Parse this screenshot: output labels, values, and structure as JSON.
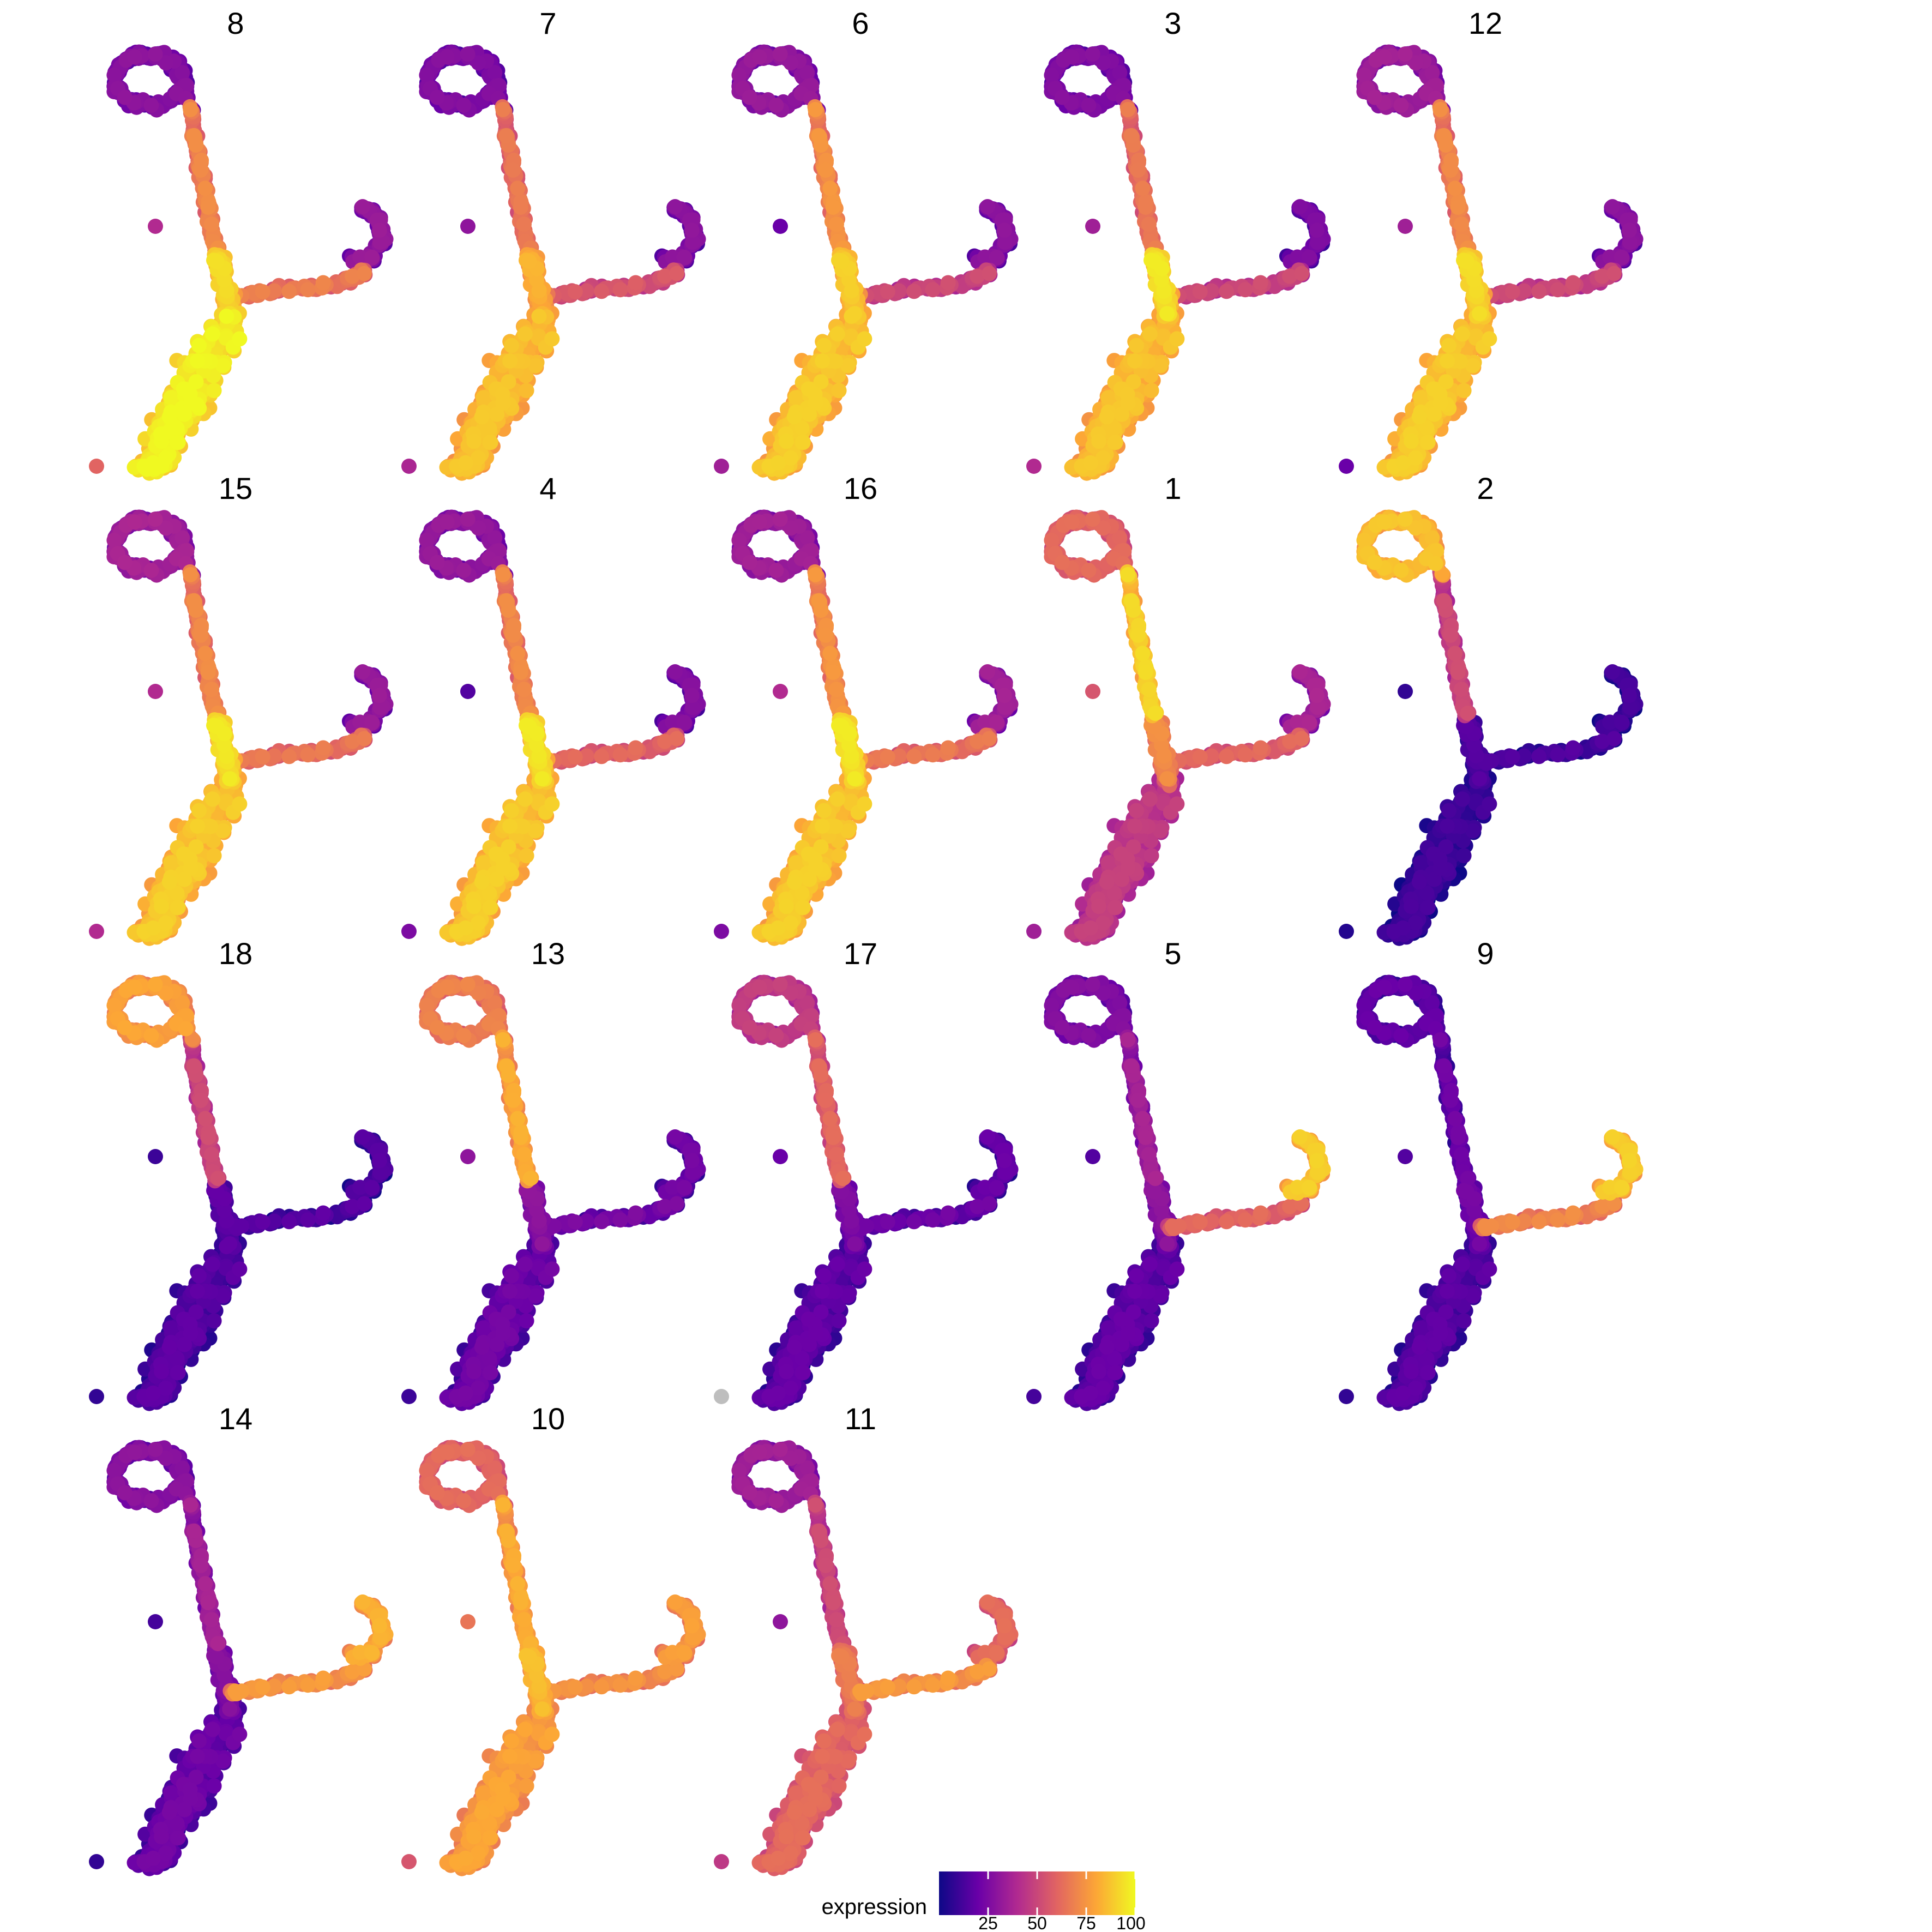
{
  "chart_data": {
    "type": "scatter",
    "subtype": "faceted-embedding-feature-plot",
    "facet_order": [
      "8",
      "7",
      "6",
      "3",
      "12",
      "15",
      "4",
      "16",
      "1",
      "2",
      "18",
      "13",
      "17",
      "5",
      "9",
      "14",
      "10",
      "11"
    ],
    "facet_layout": {
      "columns": 5,
      "rows": 4
    },
    "grid": false,
    "axes_shown": false,
    "legend": {
      "title": "expression",
      "position": "bottom-center",
      "range": [
        0,
        100
      ],
      "ticks": [
        25,
        50,
        75,
        100
      ],
      "tick_labels": [
        "25",
        "50",
        "75",
        "100"
      ],
      "colormap": "plasma",
      "colors": [
        "#0d0887",
        "#6a00a8",
        "#b12a90",
        "#e16462",
        "#fca636",
        "#f0f921"
      ]
    },
    "na_color": "#bebebe",
    "embedding_regions": [
      "top-loop",
      "upper-stem",
      "junction",
      "right-arm",
      "right-hook",
      "lower-body",
      "isolated-cell-left",
      "isolated-cell-bottom"
    ],
    "facets": [
      {
        "title": "8",
        "expression": {
          "top-loop": 22,
          "upper-stem": 65,
          "junction": 85,
          "right-arm": 62,
          "right-hook": 25,
          "lower-body": 92,
          "isolated-cell-left": 40,
          "isolated-cell-bottom": 60
        }
      },
      {
        "title": "7",
        "expression": {
          "top-loop": 20,
          "upper-stem": 60,
          "junction": 75,
          "right-arm": 50,
          "right-hook": 22,
          "lower-body": 80,
          "isolated-cell-left": 30,
          "isolated-cell-bottom": 38
        }
      },
      {
        "title": "6",
        "expression": {
          "top-loop": 25,
          "upper-stem": 68,
          "junction": 82,
          "right-arm": 45,
          "right-hook": 22,
          "lower-body": 82,
          "isolated-cell-left": 20,
          "isolated-cell-bottom": 35
        }
      },
      {
        "title": "3",
        "expression": {
          "top-loop": 20,
          "upper-stem": 60,
          "junction": 88,
          "right-arm": 45,
          "right-hook": 18,
          "lower-body": 80,
          "isolated-cell-left": 35,
          "isolated-cell-bottom": 40
        }
      },
      {
        "title": "12",
        "expression": {
          "top-loop": 28,
          "upper-stem": 65,
          "junction": 85,
          "right-arm": 45,
          "right-hook": 22,
          "lower-body": 82,
          "isolated-cell-left": 35,
          "isolated-cell-bottom": 20
        }
      },
      {
        "title": "15",
        "expression": {
          "top-loop": 30,
          "upper-stem": 65,
          "junction": 88,
          "right-arm": 60,
          "right-hook": 25,
          "lower-body": 82,
          "isolated-cell-left": 40,
          "isolated-cell-bottom": 40
        }
      },
      {
        "title": "4",
        "expression": {
          "top-loop": 25,
          "upper-stem": 65,
          "junction": 88,
          "right-arm": 55,
          "right-hook": 20,
          "lower-body": 82,
          "isolated-cell-left": 15,
          "isolated-cell-bottom": 25
        }
      },
      {
        "title": "16",
        "expression": {
          "top-loop": 28,
          "upper-stem": 68,
          "junction": 88,
          "right-arm": 60,
          "right-hook": 28,
          "lower-body": 82,
          "isolated-cell-left": 40,
          "isolated-cell-bottom": 25
        }
      },
      {
        "title": "1",
        "expression": {
          "top-loop": 55,
          "upper-stem": 85,
          "junction": 65,
          "right-arm": 55,
          "right-hook": 30,
          "lower-body": 40,
          "isolated-cell-left": 55,
          "isolated-cell-bottom": 35
        }
      },
      {
        "title": "2",
        "expression": {
          "top-loop": 80,
          "upper-stem": 45,
          "junction": 8,
          "right-arm": 8,
          "right-hook": 5,
          "lower-body": 5,
          "isolated-cell-left": 8,
          "isolated-cell-bottom": 5
        }
      },
      {
        "title": "18",
        "expression": {
          "top-loop": 72,
          "upper-stem": 45,
          "junction": 10,
          "right-arm": 10,
          "right-hook": 8,
          "lower-body": 10,
          "isolated-cell-left": 10,
          "isolated-cell-bottom": 8
        }
      },
      {
        "title": "13",
        "expression": {
          "top-loop": 62,
          "upper-stem": 75,
          "junction": 22,
          "right-arm": 18,
          "right-hook": 15,
          "lower-body": 15,
          "isolated-cell-left": 30,
          "isolated-cell-bottom": 10
        }
      },
      {
        "title": "17",
        "expression": {
          "top-loop": 40,
          "upper-stem": 55,
          "junction": 18,
          "right-arm": 15,
          "right-hook": 12,
          "lower-body": 12,
          "isolated-cell-left": 20,
          "isolated-cell-bottom": null
        }
      },
      {
        "title": "5",
        "expression": {
          "top-loop": 20,
          "upper-stem": 30,
          "junction": 22,
          "right-arm": 55,
          "right-hook": 82,
          "lower-body": 12,
          "isolated-cell-left": 15,
          "isolated-cell-bottom": 12
        }
      },
      {
        "title": "9",
        "expression": {
          "top-loop": 12,
          "upper-stem": 15,
          "junction": 15,
          "right-arm": 65,
          "right-hook": 82,
          "lower-body": 10,
          "isolated-cell-left": 15,
          "isolated-cell-bottom": 8
        }
      },
      {
        "title": "14",
        "expression": {
          "top-loop": 22,
          "upper-stem": 30,
          "junction": 20,
          "right-arm": 70,
          "right-hook": 75,
          "lower-body": 15,
          "isolated-cell-left": 12,
          "isolated-cell-bottom": 8
        }
      },
      {
        "title": "10",
        "expression": {
          "top-loop": 55,
          "upper-stem": 75,
          "junction": 78,
          "right-arm": 68,
          "right-hook": 70,
          "lower-body": 72,
          "isolated-cell-left": 65,
          "isolated-cell-bottom": 55
        }
      },
      {
        "title": "11",
        "expression": {
          "top-loop": 28,
          "upper-stem": 45,
          "junction": 60,
          "right-arm": 70,
          "right-hook": 55,
          "lower-body": 55,
          "isolated-cell-left": 30,
          "isolated-cell-bottom": 45
        }
      }
    ]
  }
}
